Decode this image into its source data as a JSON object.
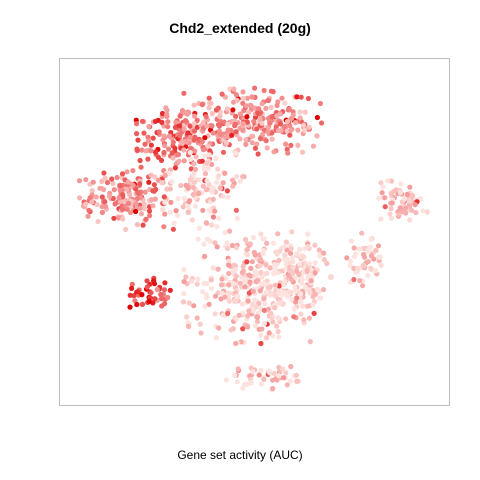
{
  "chart_data": {
    "type": "scatter",
    "title": "Chd2_extended (20g)",
    "xlabel": "Gene set activity (AUC)",
    "ylabel": "",
    "axes_visible": false,
    "grid": false,
    "legend": "none",
    "point_colors": {
      "low": "#fde3df",
      "mid": "#f28a8a",
      "high": "#e00000"
    },
    "clusters": [
      {
        "name": "",
        "cx": 0.32,
        "cy": 0.77,
        "rx": 0.12,
        "ry": 0.085,
        "n": 180,
        "mean_activity": 0.55
      },
      {
        "name": "",
        "cx": 0.5,
        "cy": 0.82,
        "rx": 0.17,
        "ry": 0.09,
        "n": 260,
        "mean_activity": 0.4
      },
      {
        "name": "",
        "cx": 0.17,
        "cy": 0.6,
        "rx": 0.12,
        "ry": 0.085,
        "n": 170,
        "mean_activity": 0.45
      },
      {
        "name": "",
        "cx": 0.37,
        "cy": 0.62,
        "rx": 0.1,
        "ry": 0.1,
        "n": 120,
        "mean_activity": 0.12
      },
      {
        "name": "",
        "cx": 0.5,
        "cy": 0.34,
        "rx": 0.17,
        "ry": 0.15,
        "n": 380,
        "mean_activity": 0.1
      },
      {
        "name": "",
        "cx": 0.61,
        "cy": 0.38,
        "rx": 0.08,
        "ry": 0.1,
        "n": 90,
        "mean_activity": 0.1
      },
      {
        "name": "",
        "cx": 0.88,
        "cy": 0.59,
        "rx": 0.065,
        "ry": 0.07,
        "n": 70,
        "mean_activity": 0.15
      },
      {
        "name": "",
        "cx": 0.78,
        "cy": 0.42,
        "rx": 0.05,
        "ry": 0.07,
        "n": 50,
        "mean_activity": 0.1
      },
      {
        "name": "",
        "cx": 0.23,
        "cy": 0.32,
        "rx": 0.05,
        "ry": 0.045,
        "n": 45,
        "mean_activity": 0.7
      },
      {
        "name": "",
        "cx": 0.52,
        "cy": 0.08,
        "rx": 0.09,
        "ry": 0.035,
        "n": 50,
        "mean_activity": 0.05
      }
    ]
  }
}
